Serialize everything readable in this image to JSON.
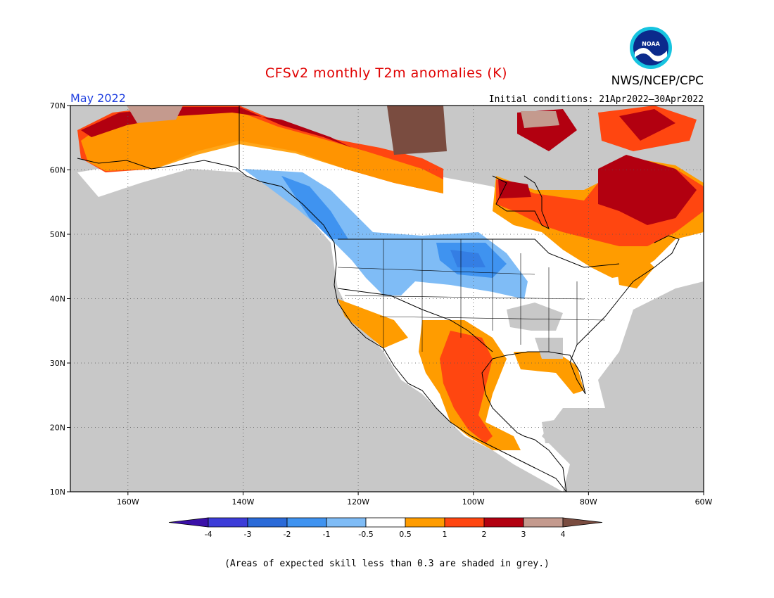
{
  "header": {
    "title": "CFSv2 monthly T2m anomalies (K)",
    "agency": "NWS/NCEP/CPC",
    "month": "May 2022",
    "initial_conditions": "Initial conditions: 21Apr2022–30Apr2022",
    "logo_text": "NOAA"
  },
  "map": {
    "lon_range": [
      -170,
      -60
    ],
    "lat_range": [
      10,
      70
    ],
    "lon_ticks": [
      "160W",
      "140W",
      "120W",
      "100W",
      "80W",
      "60W"
    ],
    "lat_ticks": [
      "70N",
      "60N",
      "50N",
      "40N",
      "30N",
      "20N",
      "10N"
    ],
    "grid": "dotted"
  },
  "colorbar": {
    "tick_labels": [
      "-4",
      "-3",
      "-2",
      "-1",
      "-0.5",
      "0.5",
      "1",
      "2",
      "3",
      "4"
    ],
    "colors": [
      "#3a10a8",
      "#3c3cd8",
      "#2a6ad8",
      "#3f93f0",
      "#7fbcf6",
      "#ffffff",
      "#ff9c00",
      "#ff4610",
      "#b20010",
      "#c49a8e",
      "#7a4c40"
    ]
  },
  "footnote": "(Areas of expected skill less than 0.3 are shaded in grey.)",
  "palette": {
    "grey": "#c8c8c8",
    "neutral": "#ffffff",
    "land_line": "#000000"
  }
}
